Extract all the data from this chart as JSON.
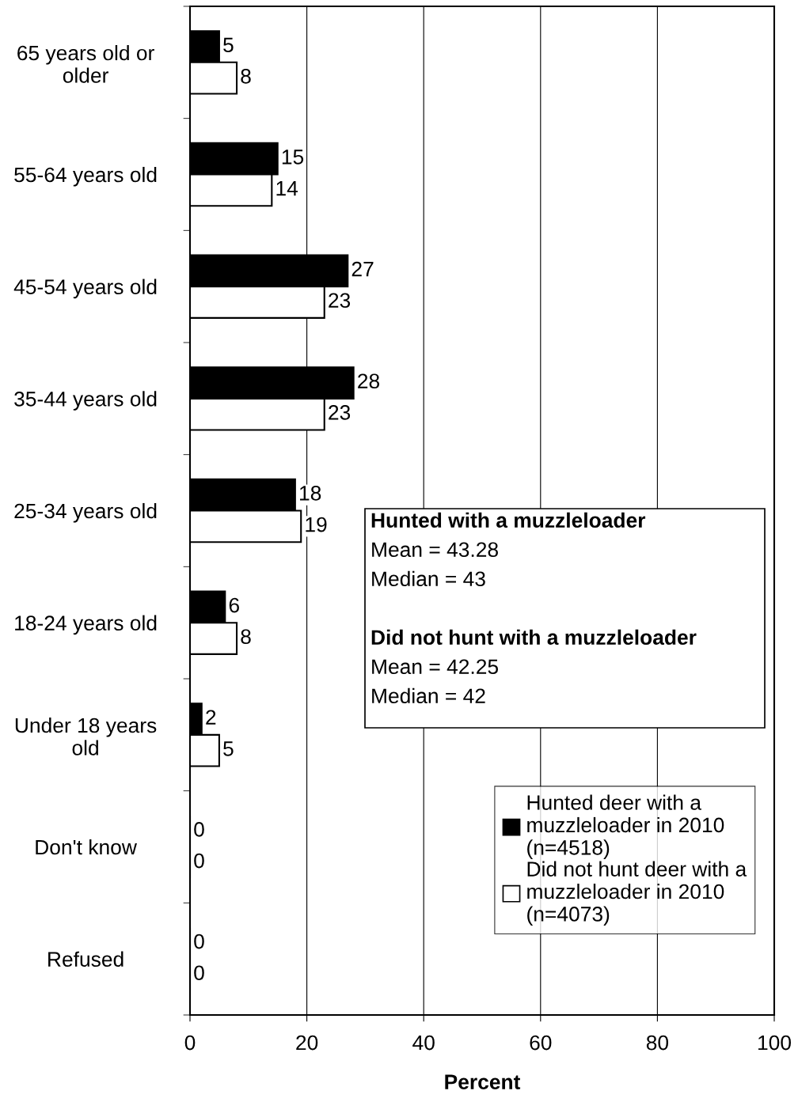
{
  "chart_data": {
    "type": "bar",
    "orientation": "horizontal",
    "xlabel": "Percent",
    "categories": [
      "65 years old or older",
      "55-64 years old",
      "45-54 years old",
      "35-44 years old",
      "25-34 years old",
      "18-24 years old",
      "Under 18 years old",
      "Don't know",
      "Refused"
    ],
    "series": [
      {
        "name": "Hunted deer with a muzzleloader in 2010 (n=4518)",
        "color": "#000000",
        "values": [
          5,
          15,
          27,
          28,
          18,
          6,
          2,
          0,
          0
        ]
      },
      {
        "name": "Did not hunt deer with a muzzleloader in 2010 (n=4073)",
        "color": "#ffffff",
        "values": [
          8,
          14,
          23,
          23,
          19,
          8,
          5,
          0,
          0
        ]
      }
    ],
    "xlim": [
      0,
      100
    ],
    "xticks": [
      0,
      20,
      40,
      60,
      80,
      100
    ],
    "grid": "x",
    "legend": "bottom right",
    "data_labels": true,
    "annotations": [
      "Hunted with a muzzleloader",
      "Mean = 43.28",
      "Median = 43",
      "Did not hunt with a muzzleloader",
      "Mean = 42.25",
      "Median = 42"
    ]
  }
}
